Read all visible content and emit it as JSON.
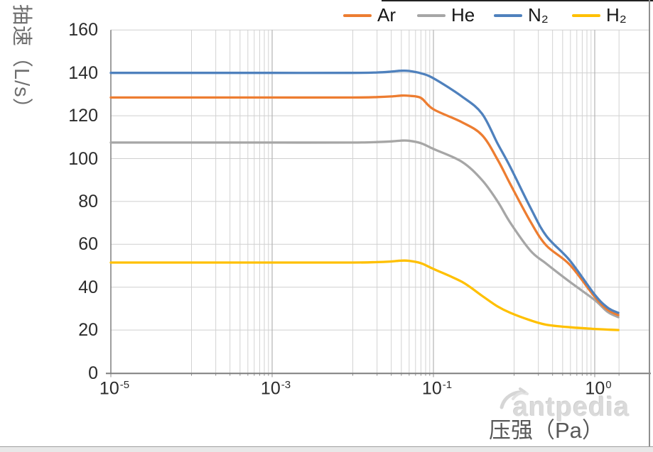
{
  "legend": {
    "items": [
      {
        "label": "Ar",
        "color": "#ED7D31"
      },
      {
        "label": "He",
        "color": "#A6A6A6"
      },
      {
        "label": "N₂",
        "color": "#4F81BD"
      },
      {
        "label": "H₂",
        "color": "#FFC000"
      }
    ]
  },
  "y_axis": {
    "title": "抽速（L/s）",
    "tick_values": [
      0,
      20,
      40,
      60,
      80,
      100,
      120,
      140,
      160
    ]
  },
  "x_axis": {
    "title": "压强（Pa）",
    "ticks": [
      {
        "base": "10",
        "exp": "-5",
        "value": 1e-05
      },
      {
        "base": "10",
        "exp": "-3",
        "value": 0.001
      },
      {
        "base": "10",
        "exp": "-1",
        "value": 0.1
      },
      {
        "base": "10",
        "exp": "0",
        "value": 1
      }
    ]
  },
  "watermark": {
    "text": "antpedia"
  },
  "chart_data": {
    "type": "line",
    "title": "",
    "xlabel": "压强（Pa）",
    "ylabel": "抽速（L/s）",
    "x_scale": "log",
    "xlim": [
      1e-05,
      2.2
    ],
    "ylim": [
      0,
      160
    ],
    "grid": true,
    "legend_position": "top-right",
    "x": [
      1e-05,
      0.0001,
      0.001,
      0.01,
      0.02,
      0.03,
      0.04,
      0.05,
      0.07,
      0.1,
      0.15,
      0.2,
      0.25,
      0.3,
      0.4,
      0.5,
      0.7,
      1.0,
      1.2,
      1.4
    ],
    "series": [
      {
        "name": "Ar",
        "color": "#ED7D31",
        "values": [
          128.5,
          128.5,
          128.5,
          128.5,
          128.7,
          129.0,
          129.4,
          129.3,
          128.3,
          123.0,
          117.0,
          111.0,
          99.5,
          88.0,
          70.5,
          59.5,
          50.5,
          35.5,
          29.5,
          27.0
        ]
      },
      {
        "name": "He",
        "color": "#A6A6A6",
        "values": [
          107.5,
          107.5,
          107.5,
          107.5,
          107.7,
          108.0,
          108.4,
          108.3,
          107.2,
          104.5,
          98.5,
          90.0,
          80.0,
          70.0,
          57.0,
          51.0,
          42.5,
          34.0,
          28.5,
          26.0
        ]
      },
      {
        "name": "N₂",
        "color": "#4F81BD",
        "values": [
          140.0,
          140.0,
          140.0,
          140.0,
          140.2,
          140.6,
          141.0,
          140.9,
          139.8,
          137.5,
          129.0,
          121.0,
          107.0,
          96.0,
          77.0,
          64.0,
          52.5,
          36.5,
          30.5,
          28.0
        ]
      },
      {
        "name": "H₂",
        "color": "#FFC000",
        "values": [
          51.5,
          51.5,
          51.5,
          51.5,
          51.7,
          52.0,
          52.4,
          52.3,
          51.2,
          48.5,
          42.5,
          36.0,
          31.0,
          28.0,
          24.5,
          22.5,
          21.3,
          20.5,
          20.2,
          20.0
        ]
      }
    ]
  }
}
